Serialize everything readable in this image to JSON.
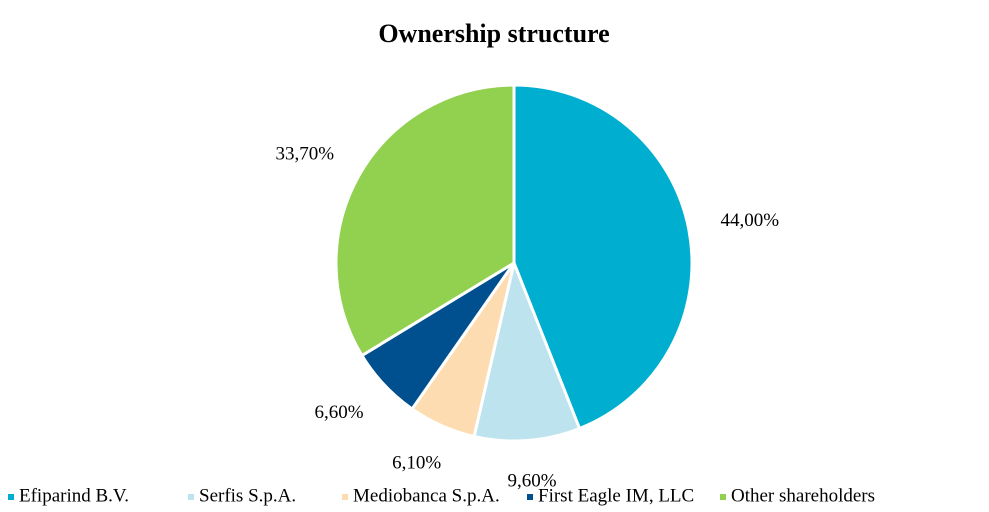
{
  "chart_data": {
    "type": "pie",
    "title": "Ownership structure",
    "categories": [
      "Efiparind B.V.",
      "Serfis S.p.A.",
      "Mediobanca S.p.A.",
      "First Eagle IM, LLC",
      "Other shareholders"
    ],
    "values": [
      44,
      9.6,
      6.1,
      6.6,
      33.7
    ],
    "value_labels": [
      "44,00%",
      "9,60%",
      "6,10%",
      "6,60%",
      "33,70%"
    ],
    "colors": [
      "#00afd0",
      "#bde3ee",
      "#fddcb1",
      "#00508f",
      "#92d050"
    ],
    "legend": "bottom"
  }
}
